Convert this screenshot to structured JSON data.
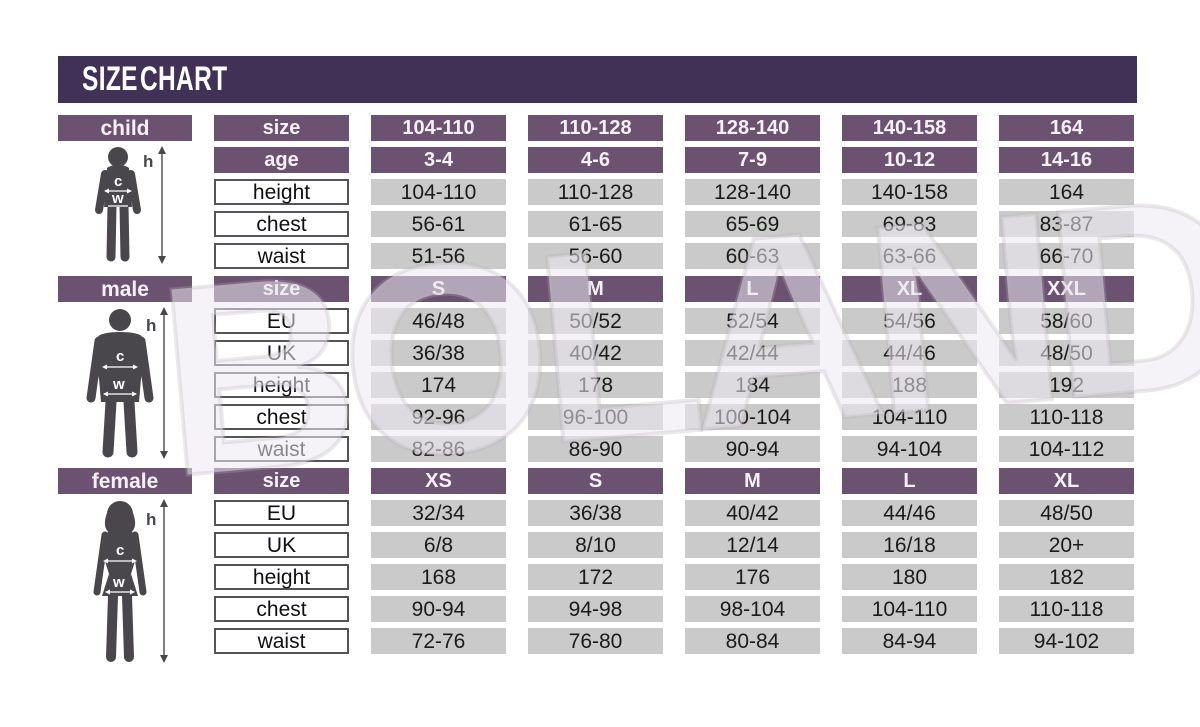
{
  "title": "SIZE CHART",
  "watermark": "BOLAND",
  "colors": {
    "title_bar": "#423156",
    "header_bar": "#6b5271",
    "cell_gray": "#cacaca",
    "silhouette": "#4a474c",
    "text_dark": "#1b1b1b"
  },
  "figure_annotations": {
    "height_letter": "h",
    "chest_letter": "c",
    "waist_letter": "w"
  },
  "chart_data": [
    {
      "type": "table",
      "title": "child",
      "rows": [
        {
          "label": "size",
          "style": "header",
          "values": [
            "104-110",
            "110-128",
            "128-140",
            "140-158",
            "164"
          ]
        },
        {
          "label": "age",
          "style": "header",
          "values": [
            "3-4",
            "4-6",
            "7-9",
            "10-12",
            "14-16"
          ]
        },
        {
          "label": "height",
          "style": "data",
          "values": [
            "104-110",
            "110-128",
            "128-140",
            "140-158",
            "164"
          ]
        },
        {
          "label": "chest",
          "style": "data",
          "values": [
            "56-61",
            "61-65",
            "65-69",
            "69-83",
            "83-87"
          ]
        },
        {
          "label": "waist",
          "style": "data",
          "values": [
            "51-56",
            "56-60",
            "60-63",
            "63-66",
            "66-70"
          ]
        }
      ]
    },
    {
      "type": "table",
      "title": "male",
      "rows": [
        {
          "label": "size",
          "style": "header",
          "values": [
            "S",
            "M",
            "L",
            "XL",
            "XXL"
          ]
        },
        {
          "label": "EU",
          "style": "data",
          "values": [
            "46/48",
            "50/52",
            "52/54",
            "54/56",
            "58/60"
          ]
        },
        {
          "label": "UK",
          "style": "data",
          "values": [
            "36/38",
            "40/42",
            "42/44",
            "44/46",
            "48/50"
          ]
        },
        {
          "label": "height",
          "style": "data",
          "values": [
            "174",
            "178",
            "184",
            "188",
            "192"
          ]
        },
        {
          "label": "chest",
          "style": "data",
          "values": [
            "92-96",
            "96-100",
            "100-104",
            "104-110",
            "110-118"
          ]
        },
        {
          "label": "waist",
          "style": "data",
          "values": [
            "82-86",
            "86-90",
            "90-94",
            "94-104",
            "104-112"
          ]
        }
      ]
    },
    {
      "type": "table",
      "title": "female",
      "rows": [
        {
          "label": "size",
          "style": "header",
          "values": [
            "XS",
            "S",
            "M",
            "L",
            "XL"
          ]
        },
        {
          "label": "EU",
          "style": "data",
          "values": [
            "32/34",
            "36/38",
            "40/42",
            "44/46",
            "48/50"
          ]
        },
        {
          "label": "UK",
          "style": "data",
          "values": [
            "6/8",
            "8/10",
            "12/14",
            "16/18",
            "20+"
          ]
        },
        {
          "label": "height",
          "style": "data",
          "values": [
            "168",
            "172",
            "176",
            "180",
            "182"
          ]
        },
        {
          "label": "chest",
          "style": "data",
          "values": [
            "90-94",
            "94-98",
            "98-104",
            "104-110",
            "110-118"
          ]
        },
        {
          "label": "waist",
          "style": "data",
          "values": [
            "72-76",
            "76-80",
            "80-84",
            "84-94",
            "94-102"
          ]
        }
      ]
    }
  ]
}
